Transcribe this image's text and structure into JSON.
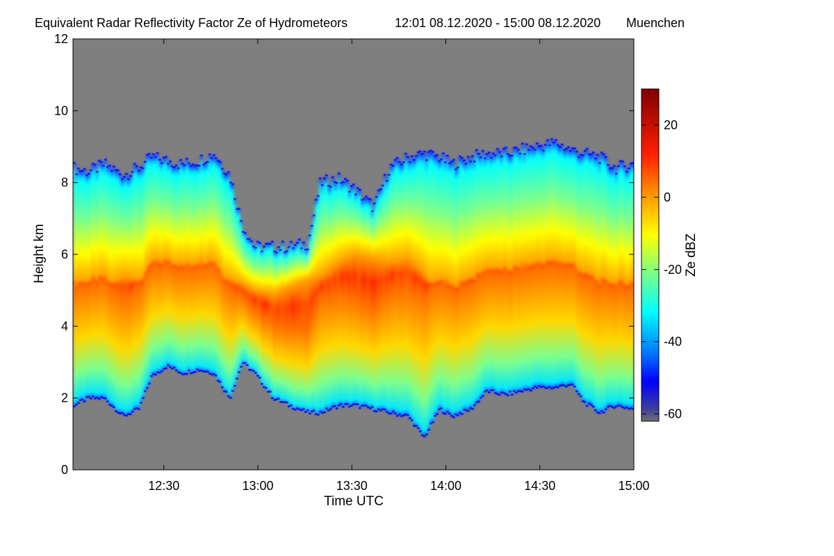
{
  "chart_data": {
    "type": "heatmap",
    "title": "Equivalent Radar Reflectivity Factor Ze of Hydrometeors",
    "time_range": "12:01 08.12.2020 - 15:00 08.12.2020",
    "location": "Muenchen",
    "xlabel": "Time UTC",
    "ylabel": "Height km",
    "xlim_minutes": [
      721,
      900
    ],
    "ylim": [
      0,
      12
    ],
    "x_ticks": [
      {
        "minute": 750,
        "label": "12:30"
      },
      {
        "minute": 780,
        "label": "13:00"
      },
      {
        "minute": 810,
        "label": "13:30"
      },
      {
        "minute": 840,
        "label": "14:00"
      },
      {
        "minute": 870,
        "label": "14:30"
      },
      {
        "minute": 900,
        "label": "15:00"
      }
    ],
    "y_ticks": [
      {
        "value": 0,
        "label": "0"
      },
      {
        "value": 2,
        "label": "2"
      },
      {
        "value": 4,
        "label": "4"
      },
      {
        "value": 6,
        "label": "6"
      },
      {
        "value": 8,
        "label": "8"
      },
      {
        "value": 10,
        "label": "10"
      },
      {
        "value": 12,
        "label": "12"
      }
    ],
    "colorbar": {
      "label": "Ze dBZ",
      "range": [
        -62,
        30
      ],
      "ticks": [
        {
          "value": 20,
          "label": "20"
        },
        {
          "value": 0,
          "label": "0"
        },
        {
          "value": -20,
          "label": "-20"
        },
        {
          "value": -40,
          "label": "-40"
        },
        {
          "value": -60,
          "label": "-60"
        }
      ]
    },
    "no_echo_color": "#7f7f7f",
    "cloud_profile": [
      {
        "minute": 721,
        "base_km": 1.8,
        "top_km": 8.4,
        "core_low_km": 3.0,
        "core_high_km": 5.2
      },
      {
        "minute": 726,
        "base_km": 2.0,
        "top_km": 8.3,
        "core_low_km": 3.0,
        "core_high_km": 5.0
      },
      {
        "minute": 731,
        "base_km": 2.0,
        "top_km": 8.5,
        "core_low_km": 2.8,
        "core_high_km": 5.1
      },
      {
        "minute": 737,
        "base_km": 1.5,
        "top_km": 8.2,
        "core_low_km": 2.6,
        "core_high_km": 5.4
      },
      {
        "minute": 742,
        "base_km": 1.7,
        "top_km": 8.4,
        "core_low_km": 2.7,
        "core_high_km": 5.3
      },
      {
        "minute": 746,
        "base_km": 2.6,
        "top_km": 8.7,
        "core_low_km": 3.2,
        "core_high_km": 5.4
      },
      {
        "minute": 751,
        "base_km": 2.9,
        "top_km": 8.6,
        "core_low_km": 3.4,
        "core_high_km": 5.2
      },
      {
        "minute": 756,
        "base_km": 2.7,
        "top_km": 8.5,
        "core_low_km": 3.1,
        "core_high_km": 5.2
      },
      {
        "minute": 761,
        "base_km": 2.8,
        "top_km": 8.6,
        "core_low_km": 3.1,
        "core_high_km": 5.3
      },
      {
        "minute": 766,
        "base_km": 2.7,
        "top_km": 8.8,
        "core_low_km": 3.1,
        "core_high_km": 5.4
      },
      {
        "minute": 771,
        "base_km": 2.0,
        "top_km": 8.2,
        "core_low_km": 2.8,
        "core_high_km": 5.3
      },
      {
        "minute": 775,
        "base_km": 3.0,
        "top_km": 6.8,
        "core_low_km": 3.2,
        "core_high_km": 5.2
      },
      {
        "minute": 779,
        "base_km": 2.7,
        "top_km": 6.2,
        "core_low_km": 3.1,
        "core_high_km": 5.0
      },
      {
        "minute": 785,
        "base_km": 2.0,
        "top_km": 6.2,
        "core_low_km": 2.6,
        "core_high_km": 4.9
      },
      {
        "minute": 790,
        "base_km": 1.8,
        "top_km": 6.2,
        "core_low_km": 2.4,
        "core_high_km": 5.1
      },
      {
        "minute": 796,
        "base_km": 1.6,
        "top_km": 6.3,
        "core_low_km": 2.3,
        "core_high_km": 5.3
      },
      {
        "minute": 800,
        "base_km": 1.6,
        "top_km": 8.0,
        "core_low_km": 2.2,
        "core_high_km": 5.4
      },
      {
        "minute": 806,
        "base_km": 1.8,
        "top_km": 8.1,
        "core_low_km": 2.2,
        "core_high_km": 5.8
      },
      {
        "minute": 811,
        "base_km": 1.8,
        "top_km": 7.8,
        "core_low_km": 2.2,
        "core_high_km": 6.0
      },
      {
        "minute": 817,
        "base_km": 1.7,
        "top_km": 7.3,
        "core_low_km": 2.1,
        "core_high_km": 5.9
      },
      {
        "minute": 822,
        "base_km": 1.6,
        "top_km": 8.4,
        "core_low_km": 2.0,
        "core_high_km": 5.8
      },
      {
        "minute": 828,
        "base_km": 1.5,
        "top_km": 8.7,
        "core_low_km": 1.6,
        "core_high_km": 5.9
      },
      {
        "minute": 833,
        "base_km": 0.9,
        "top_km": 8.8,
        "core_low_km": 1.3,
        "core_high_km": 5.5
      },
      {
        "minute": 838,
        "base_km": 1.7,
        "top_km": 8.7,
        "core_low_km": 2.4,
        "core_high_km": 4.8
      },
      {
        "minute": 842,
        "base_km": 1.5,
        "top_km": 8.5,
        "core_low_km": 2.5,
        "core_high_km": 5.0
      },
      {
        "minute": 848,
        "base_km": 1.7,
        "top_km": 8.7,
        "core_low_km": 2.6,
        "core_high_km": 5.4
      },
      {
        "minute": 853,
        "base_km": 2.2,
        "top_km": 8.8,
        "core_low_km": 2.7,
        "core_high_km": 5.0
      },
      {
        "minute": 859,
        "base_km": 2.1,
        "top_km": 8.8,
        "core_low_km": 2.7,
        "core_high_km": 4.9
      },
      {
        "minute": 864,
        "base_km": 2.2,
        "top_km": 8.9,
        "core_low_km": 2.7,
        "core_high_km": 5.0
      },
      {
        "minute": 869,
        "base_km": 2.3,
        "top_km": 9.0,
        "core_low_km": 2.8,
        "core_high_km": 5.0
      },
      {
        "minute": 875,
        "base_km": 2.3,
        "top_km": 9.1,
        "core_low_km": 2.8,
        "core_high_km": 4.9
      },
      {
        "minute": 880,
        "base_km": 2.4,
        "top_km": 8.9,
        "core_low_km": 2.8,
        "core_high_km": 4.8
      },
      {
        "minute": 884,
        "base_km": 1.9,
        "top_km": 8.8,
        "core_low_km": 2.6,
        "core_high_km": 4.7
      },
      {
        "minute": 889,
        "base_km": 1.6,
        "top_km": 8.7,
        "core_low_km": 2.5,
        "core_high_km": 4.6
      },
      {
        "minute": 894,
        "base_km": 1.8,
        "top_km": 8.4,
        "core_low_km": 2.4,
        "core_high_km": 4.3
      },
      {
        "minute": 900,
        "base_km": 1.7,
        "top_km": 8.5,
        "core_low_km": 2.4,
        "core_high_km": 4.1
      }
    ]
  }
}
